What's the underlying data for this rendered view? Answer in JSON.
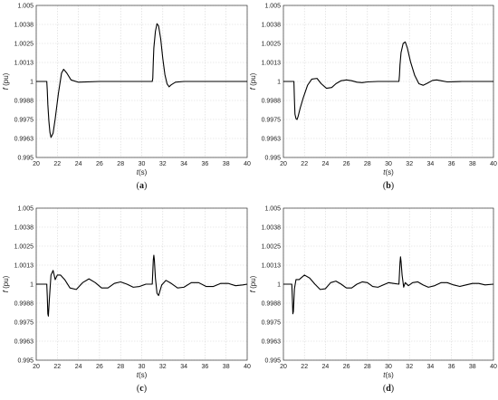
{
  "chart_data": [
    {
      "type": "line",
      "caption": "(a)",
      "caption_letter": "a",
      "xlabel": "t(s)",
      "ylabel": "f (pu)",
      "xlim": [
        20,
        40
      ],
      "ylim": [
        0.995,
        1.005
      ],
      "xticks": [
        "20",
        "22",
        "24",
        "26",
        "28",
        "30",
        "32",
        "34",
        "36",
        "38",
        "40"
      ],
      "yticks": [
        "0.995",
        "0.9963",
        "0.9975",
        "0.9988",
        "1",
        "1.0013",
        "1.0025",
        "1.0038",
        "1.005"
      ],
      "grid": true,
      "x": [
        20,
        21,
        21.05,
        21.1,
        21.2,
        21.3,
        21.4,
        21.6,
        21.8,
        22.1,
        22.4,
        22.6,
        22.9,
        23.3,
        24,
        26,
        28,
        30,
        31,
        31.05,
        31.1,
        31.15,
        31.3,
        31.45,
        31.6,
        31.8,
        32,
        32.2,
        32.4,
        32.6,
        32.8,
        33.2,
        34,
        36,
        38,
        40
      ],
      "y": [
        1,
        1,
        0.9994,
        0.9985,
        0.9974,
        0.99665,
        0.99632,
        0.9966,
        0.99755,
        0.9992,
        1.00055,
        1.0008,
        1.00055,
        1.0001,
        0.99995,
        1,
        1,
        1,
        1,
        1.0002,
        1.0013,
        1.0022,
        1.0033,
        1.0038,
        1.00365,
        1.0028,
        1.0015,
        1.00045,
        0.99985,
        0.99965,
        0.99978,
        0.99995,
        1,
        1,
        1,
        1
      ]
    },
    {
      "type": "line",
      "caption": "(b)",
      "caption_letter": "b",
      "xlabel": "t(s)",
      "ylabel": "f (pu)",
      "xlim": [
        20,
        40
      ],
      "ylim": [
        0.995,
        1.005
      ],
      "xticks": [
        "20",
        "22",
        "24",
        "26",
        "28",
        "30",
        "32",
        "34",
        "36",
        "38",
        "40"
      ],
      "yticks": [
        "0.995",
        "0.9963",
        "0.9975",
        "0.9988",
        "1",
        "1.0013",
        "1.0025",
        "1.0038",
        "1.005"
      ],
      "grid": true,
      "x": [
        20,
        21,
        21.05,
        21.1,
        21.2,
        21.3,
        21.4,
        21.6,
        21.9,
        22.3,
        22.7,
        23.2,
        23.6,
        24.1,
        24.6,
        25,
        25.5,
        26,
        26.5,
        27,
        27.5,
        28,
        29,
        30,
        31,
        31.05,
        31.1,
        31.2,
        31.4,
        31.6,
        31.8,
        32.1,
        32.5,
        32.9,
        33.3,
        33.7,
        34.2,
        34.6,
        35,
        35.6,
        36.2,
        37,
        38,
        40
      ],
      "y": [
        1,
        1,
        0.9988,
        0.99785,
        0.99755,
        0.9975,
        0.9977,
        0.99825,
        0.99895,
        0.99975,
        1.00015,
        1.0002,
        0.99985,
        0.99955,
        0.9996,
        0.99985,
        1.00005,
        1.0001,
        1.00005,
        0.99995,
        0.99992,
        0.99997,
        1,
        1,
        1,
        1.0004,
        1.0011,
        1.0019,
        1.0025,
        1.0026,
        1.0022,
        1.0013,
        1.0004,
        0.99985,
        0.99975,
        0.99988,
        1.00007,
        1.0001,
        1.00005,
        0.99997,
        0.99998,
        1,
        1,
        1
      ]
    },
    {
      "type": "line",
      "caption": "(c)",
      "caption_letter": "c",
      "xlabel": "t(s)",
      "ylabel": "f (pu)",
      "xlim": [
        20,
        40
      ],
      "ylim": [
        0.995,
        1.005
      ],
      "xticks": [
        "20",
        "22",
        "24",
        "26",
        "28",
        "30",
        "32",
        "34",
        "36",
        "38",
        "40"
      ],
      "yticks": [
        "0.995",
        "0.9963",
        "0.9975",
        "0.9988",
        "1",
        "1.0013",
        "1.0025",
        "1.0038",
        "1.005"
      ],
      "grid": true,
      "x": [
        20,
        21,
        21.05,
        21.1,
        21.15,
        21.25,
        21.4,
        21.6,
        21.8,
        22,
        22.3,
        22.7,
        23.2,
        23.8,
        24.4,
        25,
        25.6,
        26.2,
        26.8,
        27.4,
        28,
        28.6,
        29.2,
        29.8,
        30.4,
        31,
        31.05,
        31.1,
        31.15,
        31.2,
        31.3,
        31.45,
        31.6,
        31.9,
        32.3,
        32.8,
        33.4,
        34,
        34.7,
        35.4,
        36.1,
        36.8,
        37.5,
        38.2,
        38.9,
        39.6,
        40
      ],
      "y": [
        1,
        1,
        0.9992,
        0.99805,
        0.9979,
        0.99905,
        1.0006,
        1.0009,
        1.0003,
        1.0006,
        1.0006,
        1.0003,
        0.99975,
        0.99965,
        1.0001,
        1.00035,
        1.0001,
        0.99975,
        0.99975,
        1.00005,
        1.00015,
        1,
        0.9998,
        0.99985,
        1,
        1,
        1.0008,
        1.0016,
        1.0019,
        1.0016,
        1.0004,
        0.9994,
        0.99925,
        0.99995,
        1.00025,
        1.00005,
        0.99975,
        0.9998,
        1.0001,
        1.0001,
        0.99985,
        0.99985,
        1.00005,
        1.00005,
        0.9999,
        0.99995,
        1
      ]
    },
    {
      "type": "line",
      "caption": "(d)",
      "caption_letter": "d",
      "xlabel": "t(s)",
      "ylabel": "f (pu)",
      "xlim": [
        20,
        40
      ],
      "ylim": [
        0.995,
        1.005
      ],
      "xticks": [
        "20",
        "22",
        "24",
        "26",
        "28",
        "30",
        "32",
        "34",
        "36",
        "38",
        "40"
      ],
      "yticks": [
        "0.995",
        "0.9963",
        "0.9975",
        "0.9988",
        "1",
        "1.0013",
        "1.0025",
        "1.0038",
        "1.005"
      ],
      "grid": true,
      "x": [
        20,
        20.8,
        20.85,
        20.9,
        20.95,
        21.05,
        21.2,
        21.5,
        22,
        22.5,
        23,
        23.5,
        24,
        24.5,
        25,
        25.5,
        26,
        26.5,
        27,
        27.5,
        28,
        28.5,
        29,
        29.5,
        30,
        30.5,
        31,
        31.05,
        31.1,
        31.15,
        31.2,
        31.3,
        31.45,
        31.6,
        31.9,
        32.3,
        32.8,
        33.3,
        33.8,
        34.4,
        35,
        35.6,
        36.2,
        36.8,
        37.4,
        38,
        38.6,
        39.2,
        40
      ],
      "y": [
        1,
        1,
        0.9991,
        0.99805,
        0.9982,
        0.9997,
        1.0003,
        1.0003,
        1.0006,
        1.0004,
        1,
        0.99965,
        0.9997,
        1.0001,
        1.0002,
        1,
        0.99975,
        0.99975,
        1,
        1.00015,
        1.0001,
        0.99985,
        0.9998,
        0.99995,
        1.0001,
        1.00005,
        1,
        1.0007,
        1.0014,
        1.0018,
        1.0015,
        1.0006,
        0.9998,
        1.0001,
        0.9999,
        1.0001,
        1.00015,
        0.99995,
        0.9998,
        0.9999,
        1.0001,
        1.0001,
        0.99995,
        0.99985,
        0.99995,
        1.00005,
        1.00005,
        0.99995,
        1
      ]
    }
  ]
}
